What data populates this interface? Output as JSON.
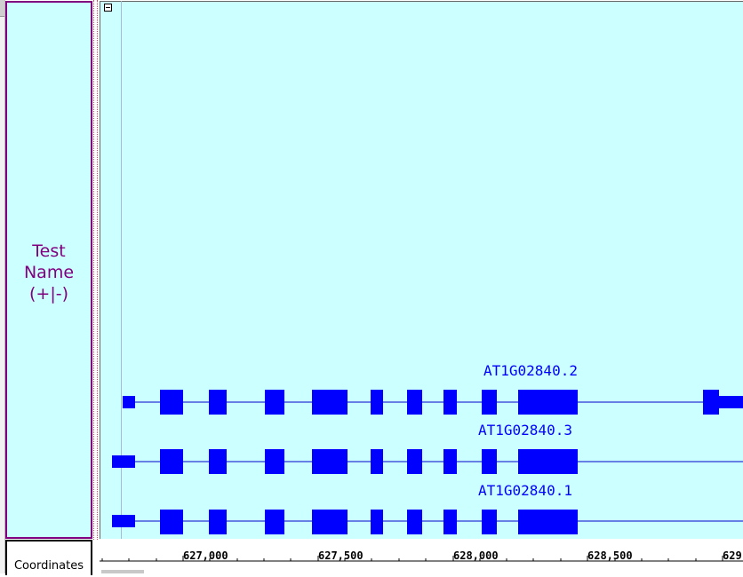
{
  "track": {
    "label_lines": [
      "Test",
      "Name",
      "(+|-)"
    ],
    "label_color": "#800080",
    "background": "#ccffff"
  },
  "coordinates_label": "Coordinates",
  "genes": [
    {
      "name": "AT1G02840.2"
    },
    {
      "name": "AT1G02840.3"
    },
    {
      "name": "AT1G02840.1"
    }
  ],
  "ruler": {
    "ticks": [
      "627,000",
      "627,500",
      "628,000",
      "628,500",
      "629,"
    ]
  },
  "colors": {
    "feature": "#0000ff",
    "track_border": "#800080"
  },
  "icons": {
    "collapse": "minus-box-icon"
  }
}
